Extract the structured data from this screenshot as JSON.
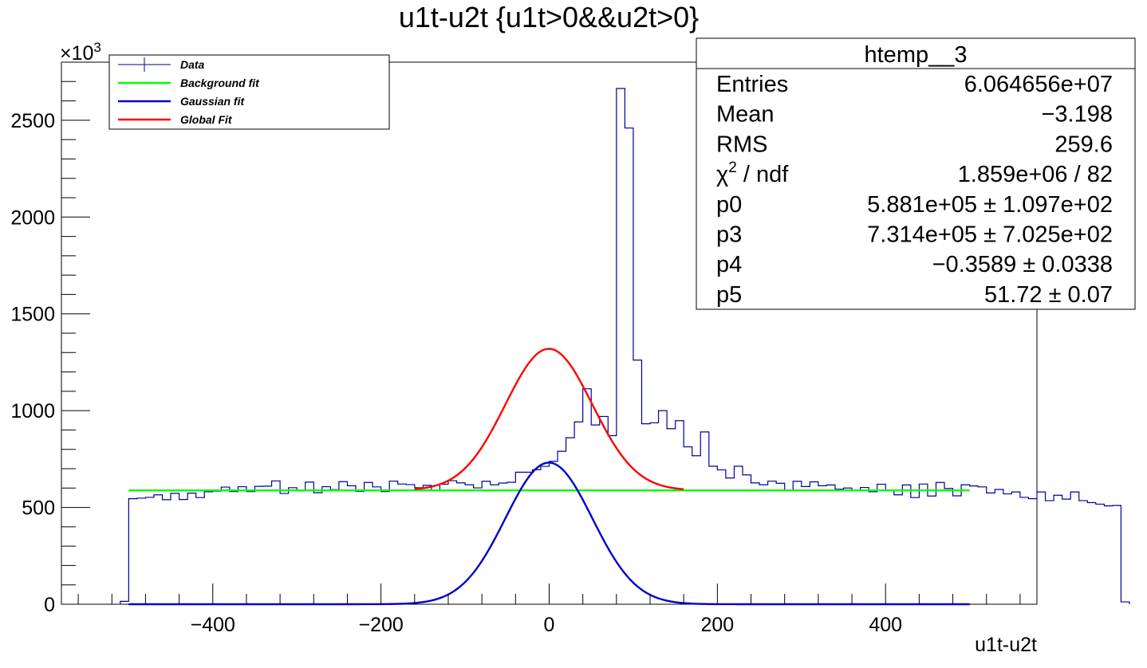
{
  "chart_data": {
    "type": "histogram",
    "title": "u1t-u2t {u1t>0&&u2t>0}",
    "xlabel": "u1t-u2t",
    "ylabel": "",
    "y_multiplier": "×10",
    "y_multiplier_exp": "3",
    "xlim": [
      -580,
      580
    ],
    "ylim": [
      0,
      2800
    ],
    "x_ticks": [
      -400,
      -200,
      0,
      200,
      400
    ],
    "x_tick_labels": [
      "−400",
      "−200",
      "0",
      "200",
      "400"
    ],
    "y_ticks": [
      0,
      500,
      1000,
      1500,
      2000,
      2500
    ],
    "y_tick_labels": [
      "0",
      "500",
      "1000",
      "1500",
      "2000",
      "2500"
    ],
    "bin_width": 10,
    "bin_start": -510,
    "bin_values": [
      15,
      545,
      548,
      552,
      565,
      540,
      573,
      541,
      574,
      551,
      581,
      584,
      605,
      582,
      607,
      582,
      609,
      610,
      637,
      572,
      602,
      585,
      631,
      576,
      607,
      592,
      633,
      612,
      583,
      629,
      606,
      582,
      636,
      621,
      618,
      602,
      614,
      588,
      620,
      638,
      627,
      617,
      601,
      635,
      617,
      626,
      630,
      682,
      682,
      695,
      712,
      738,
      790,
      860,
      942,
      1113,
      926,
      970,
      871,
      2664,
      2460,
      1261,
      932,
      937,
      1000,
      907,
      948,
      813,
      767,
      890,
      713,
      694,
      652,
      713,
      668,
      627,
      617,
      636,
      625,
      590,
      635,
      608,
      632,
      612,
      616,
      594,
      600,
      587,
      603,
      581,
      620,
      589,
      565,
      616,
      551,
      621,
      559,
      629,
      598,
      560,
      617,
      611,
      606,
      575,
      593,
      570,
      580,
      552,
      545,
      580,
      535,
      563,
      543,
      580,
      535,
      525,
      517,
      508,
      510,
      12
    ],
    "legend": {
      "placement": "top-left",
      "entries": [
        {
          "label": "Data",
          "color": "#000099",
          "style": "errorbar"
        },
        {
          "label": "Background fit",
          "color": "#00ff00",
          "style": "line"
        },
        {
          "label": "Gaussian fit",
          "color": "#0000cc",
          "style": "line"
        },
        {
          "label": "Global Fit",
          "color": "#ff0000",
          "style": "line"
        }
      ]
    },
    "fits": {
      "background": {
        "type": "constant",
        "value": 588.1,
        "xrange": [
          -500,
          500
        ],
        "color": "#00ff00"
      },
      "gaussian": {
        "type": "gaussian",
        "amplitude": 731.4,
        "mean": -0.3589,
        "sigma": 51.72,
        "xrange": [
          -500,
          500
        ],
        "color": "#0000cc"
      },
      "global": {
        "type": "constant+gaussian",
        "xrange": [
          -160,
          160
        ],
        "color": "#ff0000"
      }
    },
    "stats_box": {
      "title": "htemp__3",
      "rows": [
        {
          "label": "Entries",
          "value": "6.064656e+07"
        },
        {
          "label": "Mean",
          "value": "−3.198"
        },
        {
          "label": "RMS",
          "value": "259.6"
        },
        {
          "label": "χ",
          "label_sup": "2",
          "label_rest": " / ndf",
          "value": "1.859e+06 / 82"
        },
        {
          "label": "p0",
          "value": "5.881e+05 ± 1.097e+02"
        },
        {
          "label": "p3",
          "value": "7.314e+05 ± 7.025e+02"
        },
        {
          "label": "p4",
          "value": "−0.3589 ± 0.0338"
        },
        {
          "label": "p5",
          "value": "51.72 ± 0.07"
        }
      ]
    }
  }
}
